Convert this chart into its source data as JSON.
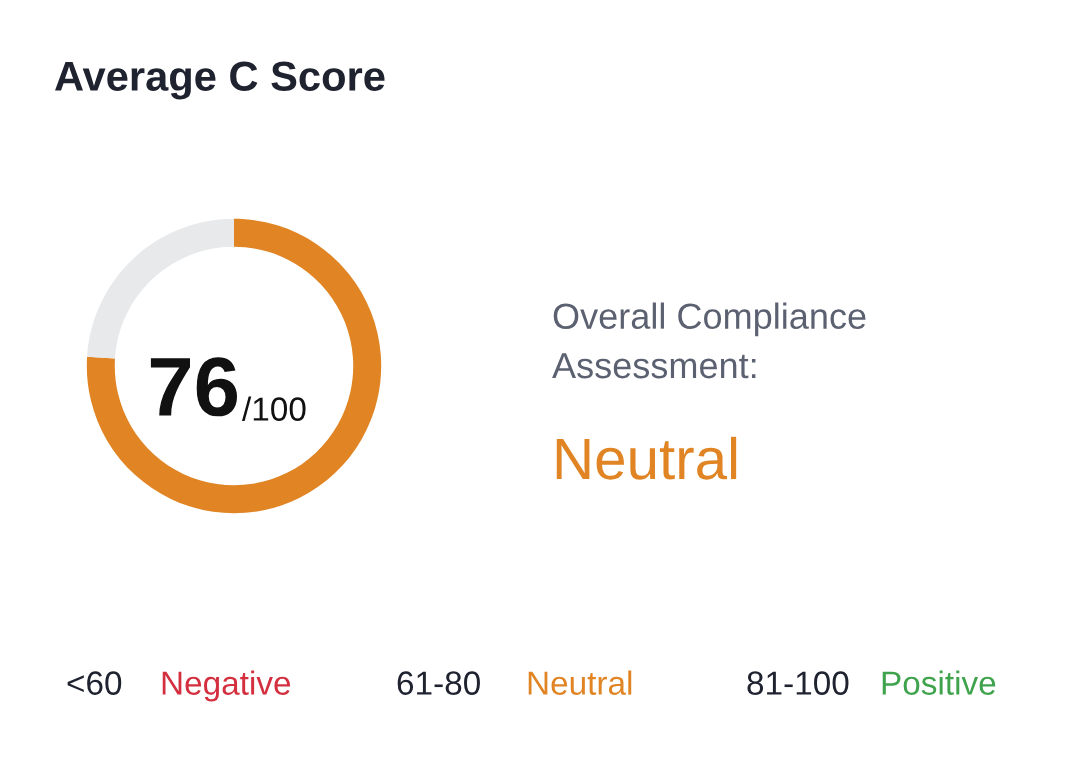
{
  "chart_data": {
    "type": "donut",
    "title": "Average C Score",
    "categories": [
      null,
      null
    ],
    "values": [
      76,
      24
    ],
    "colors": [
      "#e08424",
      "#e8e9eb"
    ],
    "annotations": [
      "76",
      "/100",
      "Overall Compliance\nAssessment:",
      "Neutral",
      "<60",
      "Negative",
      "61-80",
      "Neutral",
      "81-100",
      "Positive"
    ]
  }
}
